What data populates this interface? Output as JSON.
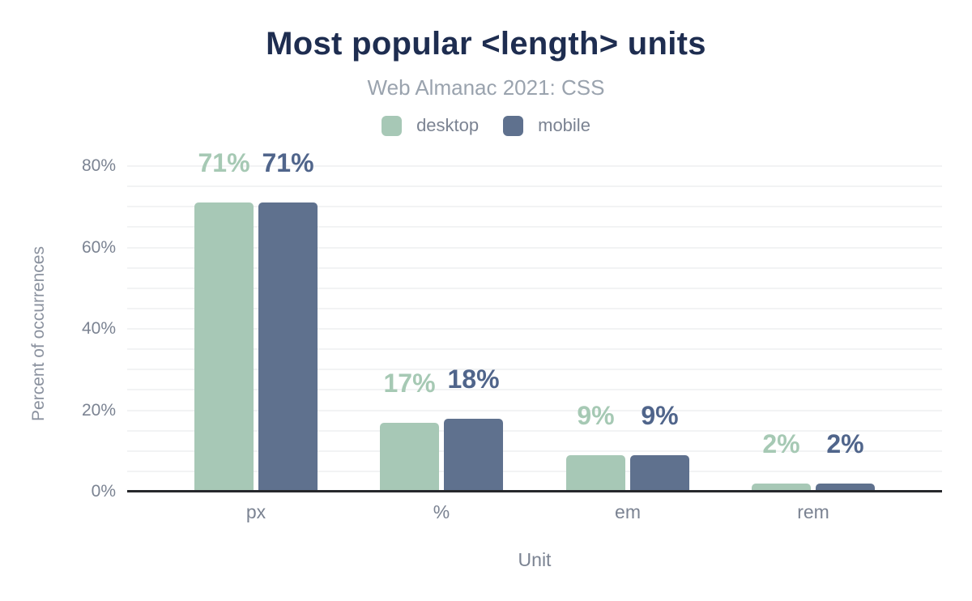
{
  "chart_data": {
    "type": "bar",
    "title": "Most popular <length> units",
    "subtitle": "Web Almanac 2021: CSS",
    "categories": [
      "px",
      "%",
      "em",
      "rem"
    ],
    "series": [
      {
        "name": "desktop",
        "color": "#a7c8b6",
        "label_color": "#a6c9b4",
        "values": [
          71,
          17,
          9,
          2
        ]
      },
      {
        "name": "mobile",
        "color": "#5f718e",
        "label_color": "#50658b",
        "values": [
          71,
          18,
          9,
          2
        ]
      }
    ],
    "value_suffix": "%",
    "xlabel": "Unit",
    "ylabel": "Percent of occurrences",
    "ylim": [
      0,
      80
    ],
    "ytick_label_step": 20,
    "ytick_suffix": "%",
    "grid_step": 5,
    "grid": true,
    "legend_position": "top"
  },
  "colors": {
    "title": "#1e2d50",
    "subtitle": "#9aa3ae",
    "axis_text": "#7b8392",
    "gridline": "#f2f3f4",
    "baseline": "#26282c",
    "background": "#ffffff"
  }
}
